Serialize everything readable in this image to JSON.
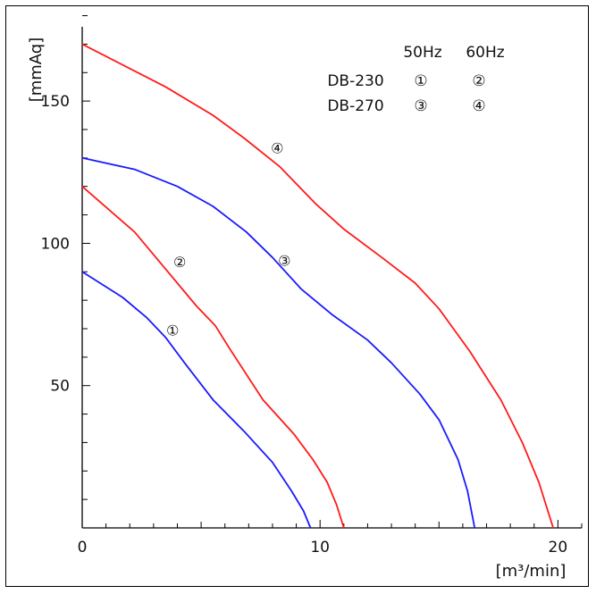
{
  "chart_data": {
    "type": "line",
    "xlabel": "[m³/min]",
    "ylabel": "[mmAq]",
    "xlim": [
      0,
      21
    ],
    "ylim": [
      0,
      183
    ],
    "x_ticks": [
      {
        "value": 0,
        "label": "0"
      },
      {
        "value": 10,
        "label": "10"
      },
      {
        "value": 20,
        "label": "20"
      }
    ],
    "y_ticks": [
      {
        "value": 50,
        "label": "50"
      },
      {
        "value": 100,
        "label": "100"
      },
      {
        "value": 150,
        "label": "150"
      }
    ],
    "grid": false,
    "legend_table": {
      "headers": [
        "50Hz",
        "60Hz"
      ],
      "rows": [
        {
          "model": "DB-230",
          "cells": [
            "①",
            "②"
          ]
        },
        {
          "model": "DB-270",
          "cells": [
            "③",
            "④"
          ]
        }
      ]
    },
    "series": [
      {
        "label": "①",
        "color": "#1a1aff",
        "label_at": [
          3.8,
          69.5
        ],
        "points": [
          [
            0,
            90
          ],
          [
            1.7,
            81
          ],
          [
            2.7,
            74
          ],
          [
            3.5,
            67
          ],
          [
            4.3,
            58
          ],
          [
            5.5,
            45
          ],
          [
            6.8,
            34
          ],
          [
            8.0,
            23
          ],
          [
            8.8,
            13
          ],
          [
            9.3,
            6
          ],
          [
            9.6,
            0
          ]
        ]
      },
      {
        "label": "②",
        "color": "#ff1a1a",
        "label_at": [
          4.1,
          93.5
        ],
        "points": [
          [
            0,
            120
          ],
          [
            2.2,
            104
          ],
          [
            3.5,
            91
          ],
          [
            4.8,
            78
          ],
          [
            5.6,
            71
          ],
          [
            6.2,
            63
          ],
          [
            7.6,
            45
          ],
          [
            8.9,
            33
          ],
          [
            9.7,
            24
          ],
          [
            10.3,
            16
          ],
          [
            10.7,
            8
          ],
          [
            11.0,
            0
          ]
        ]
      },
      {
        "label": "③",
        "color": "#1a1aff",
        "label_at": [
          8.5,
          94
        ],
        "points": [
          [
            0,
            130
          ],
          [
            2.2,
            126
          ],
          [
            4.0,
            120
          ],
          [
            5.5,
            113
          ],
          [
            6.9,
            104
          ],
          [
            8.0,
            95
          ],
          [
            9.2,
            84
          ],
          [
            10.5,
            75
          ],
          [
            12.0,
            66
          ],
          [
            13.0,
            58
          ],
          [
            14.2,
            47
          ],
          [
            15.0,
            38
          ],
          [
            15.8,
            24
          ],
          [
            16.2,
            13
          ],
          [
            16.5,
            0
          ]
        ]
      },
      {
        "label": "④",
        "color": "#ff1a1a",
        "label_at": [
          8.2,
          133.5
        ],
        "points": [
          [
            0,
            170
          ],
          [
            3.5,
            155
          ],
          [
            5.5,
            145
          ],
          [
            6.8,
            137
          ],
          [
            8.3,
            127
          ],
          [
            9.8,
            114
          ],
          [
            11.0,
            105
          ],
          [
            12.6,
            95
          ],
          [
            14.0,
            86
          ],
          [
            15.0,
            77
          ],
          [
            16.3,
            62
          ],
          [
            17.6,
            45
          ],
          [
            18.5,
            30
          ],
          [
            19.2,
            16
          ],
          [
            19.8,
            0
          ]
        ]
      }
    ]
  }
}
